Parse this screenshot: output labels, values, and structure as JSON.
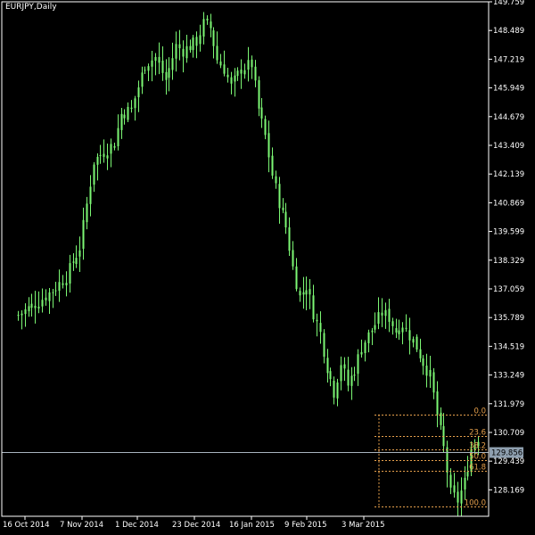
{
  "symbol_label": "EURJPY,Daily",
  "colors": {
    "background": "#000000",
    "frame": "#ffffff",
    "candles": "#7cf774",
    "fibonacci": "#e6a04c",
    "price_line": "#a9b4bf",
    "price_label_bg": "#8fa0b0"
  },
  "chart_data": {
    "type": "candlestick",
    "title": "EURJPY,Daily",
    "ylim": [
      127.0,
      149.759
    ],
    "y_ticks": [
      "149.759",
      "148.489",
      "147.219",
      "145.949",
      "144.679",
      "143.409",
      "142.139",
      "140.869",
      "139.599",
      "138.329",
      "137.059",
      "135.789",
      "134.519",
      "133.249",
      "131.979",
      "130.709",
      "129.439",
      "128.169"
    ],
    "x_ticks": [
      "16 Oct 2014",
      "7 Nov 2014",
      "1 Dec 2014",
      "23 Dec 2014",
      "16 Jan 2015",
      "9 Feb 2015",
      "3 Mar 2015"
    ],
    "current_price": "129.856",
    "grid": false,
    "fibonacci": [
      {
        "label": "0.0",
        "price": 131.5
      },
      {
        "label": "23.6",
        "price": 130.55
      },
      {
        "label": "38.2",
        "price": 129.95
      },
      {
        "label": "50.0",
        "price": 129.5
      },
      {
        "label": "61.8",
        "price": 129.0
      },
      {
        "label": "100.0",
        "price": 127.45
      }
    ],
    "series": [
      {
        "close_anchors": [
          [
            0,
            135.9
          ],
          [
            6,
            136.5
          ],
          [
            10,
            137.0
          ],
          [
            14,
            137.6
          ],
          [
            18,
            138.9
          ],
          [
            20,
            140.8
          ],
          [
            22,
            142.7
          ],
          [
            24,
            143.0
          ],
          [
            28,
            143.5
          ],
          [
            30,
            144.8
          ],
          [
            33,
            145.0
          ],
          [
            37,
            147.0
          ],
          [
            40,
            147.3
          ],
          [
            43,
            146.3
          ],
          [
            46,
            147.8
          ],
          [
            48,
            147.6
          ],
          [
            50,
            147.8
          ],
          [
            52,
            148.0
          ],
          [
            54,
            148.8
          ],
          [
            56,
            148.6
          ],
          [
            58,
            147.2
          ],
          [
            60,
            146.8
          ],
          [
            62,
            146.0
          ],
          [
            65,
            146.8
          ],
          [
            68,
            147.0
          ],
          [
            70,
            145.0
          ],
          [
            72,
            143.8
          ],
          [
            74,
            142.1
          ],
          [
            76,
            140.9
          ],
          [
            78,
            139.8
          ],
          [
            80,
            138.0
          ],
          [
            82,
            136.7
          ],
          [
            84,
            137.2
          ],
          [
            86,
            136.0
          ],
          [
            88,
            135.1
          ],
          [
            90,
            133.6
          ],
          [
            92,
            132.5
          ],
          [
            94,
            133.8
          ],
          [
            96,
            132.8
          ],
          [
            98,
            133.5
          ],
          [
            100,
            134.5
          ],
          [
            102,
            135.0
          ],
          [
            104,
            135.5
          ],
          [
            106,
            136.0
          ],
          [
            108,
            135.8
          ],
          [
            110,
            135.2
          ],
          [
            112,
            135.5
          ],
          [
            114,
            135.0
          ],
          [
            116,
            134.5
          ],
          [
            118,
            133.8
          ],
          [
            120,
            133.2
          ],
          [
            122,
            131.5
          ],
          [
            124,
            130.0
          ],
          [
            126,
            128.0
          ],
          [
            128,
            127.7
          ],
          [
            130,
            128.5
          ],
          [
            132,
            130.0
          ],
          [
            134,
            130.5
          ]
        ]
      }
    ]
  }
}
